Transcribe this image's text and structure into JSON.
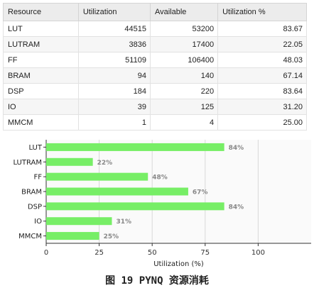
{
  "table": {
    "headers": [
      "Resource",
      "Utilization",
      "Available",
      "Utilization %"
    ],
    "rows": [
      [
        "LUT",
        "44515",
        "53200",
        "83.67"
      ],
      [
        "LUTRAM",
        "3836",
        "17400",
        "22.05"
      ],
      [
        "FF",
        "51109",
        "106400",
        "48.03"
      ],
      [
        "BRAM",
        "94",
        "140",
        "67.14"
      ],
      [
        "DSP",
        "184",
        "220",
        "83.64"
      ],
      [
        "IO",
        "39",
        "125",
        "31.20"
      ],
      [
        "MMCM",
        "1",
        "4",
        "25.00"
      ]
    ]
  },
  "chart_data": {
    "type": "bar",
    "orientation": "horizontal",
    "categories": [
      "LUT",
      "LUTRAM",
      "FF",
      "BRAM",
      "DSP",
      "IO",
      "MMCM"
    ],
    "values": [
      84,
      22,
      48,
      67,
      84,
      31,
      25
    ],
    "data_labels": [
      "84%",
      "22%",
      "48%",
      "67%",
      "84%",
      "31%",
      "25%"
    ],
    "xlabel": "Utilization (%)",
    "xticks": [
      "0",
      "25",
      "50",
      "75",
      "100"
    ],
    "xlim": [
      0,
      125
    ],
    "grid": true,
    "bar_color": "#77ee66"
  },
  "caption": "图 19  PYNQ 资源消耗"
}
